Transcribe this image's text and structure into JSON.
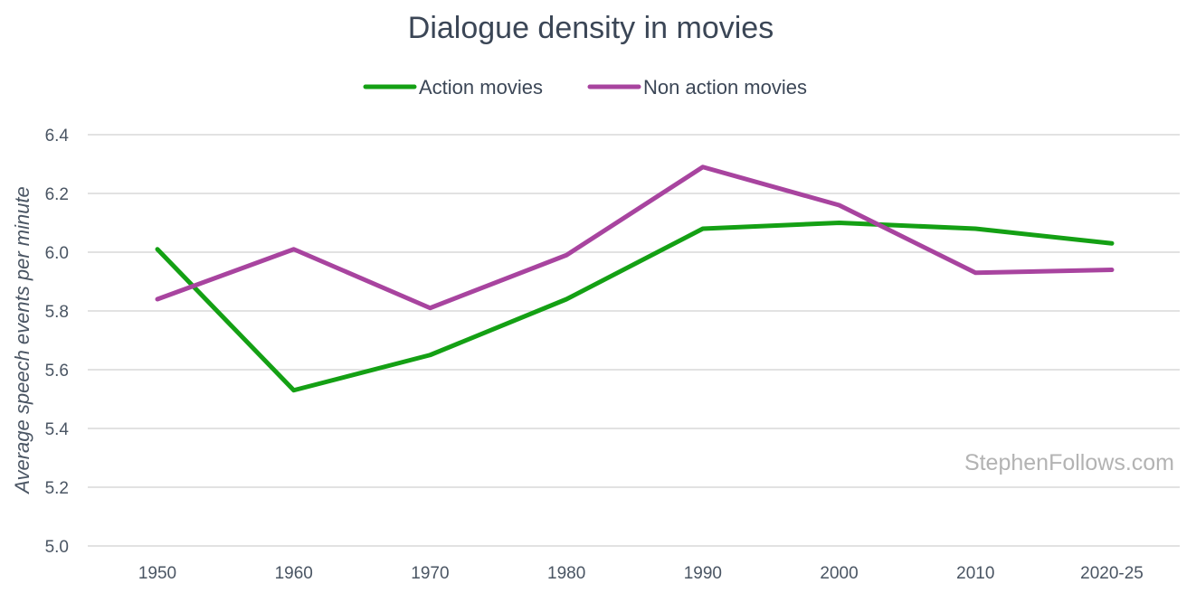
{
  "chart_data": {
    "type": "line",
    "title": "Dialogue density in movies",
    "xlabel": "",
    "ylabel": "Average speech events per minute",
    "categories": [
      "1950",
      "1960",
      "1970",
      "1980",
      "1990",
      "2000",
      "2010",
      "2020-25"
    ],
    "ylim": [
      5.0,
      6.4
    ],
    "yticks": [
      "5.0",
      "5.2",
      "5.4",
      "5.6",
      "5.8",
      "6.0",
      "6.2",
      "6.4"
    ],
    "grid": true,
    "legend_position": "top",
    "series": [
      {
        "name": "Action movies",
        "color": "#14a014",
        "values": [
          6.01,
          5.53,
          5.65,
          5.84,
          6.08,
          6.1,
          6.08,
          6.03
        ]
      },
      {
        "name": "Non action movies",
        "color": "#a8449f",
        "values": [
          5.84,
          6.01,
          5.81,
          5.99,
          6.29,
          6.16,
          5.93,
          5.94
        ]
      }
    ],
    "watermark": "StephenFollows.com"
  }
}
